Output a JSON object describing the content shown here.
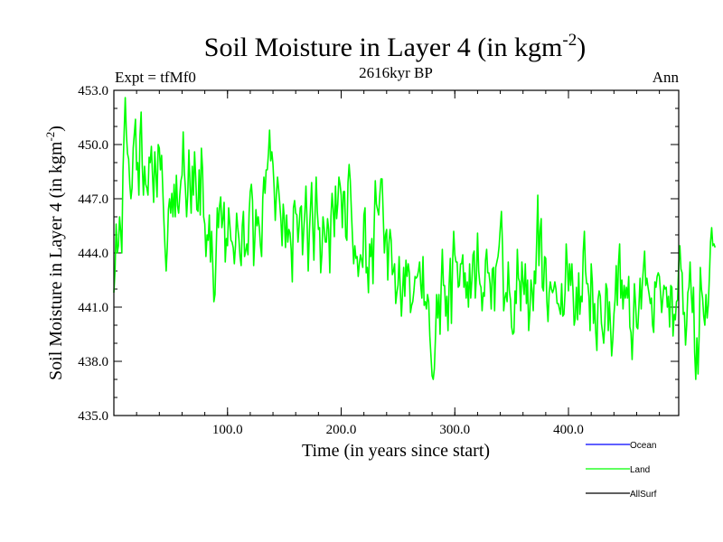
{
  "chart_data": {
    "type": "line",
    "title": "Soil Moisture in Layer 4 (in kgm",
    "title_superscript": "-2",
    "title_close": ")",
    "subtitle": "2616kyr BP",
    "left_label": "Expt = tfMf0",
    "right_label": "Ann",
    "xlabel": "Time (in years since start)",
    "ylabel": "Soil Moisture in Layer 4 (in kgm",
    "ylabel_superscript": "-2",
    "ylabel_close": ")",
    "xlim": [
      0,
      497
    ],
    "ylim": [
      435.0,
      453.0
    ],
    "x_ticks": [
      100,
      200,
      300,
      400
    ],
    "x_tick_labels": [
      "100.0",
      "200.0",
      "300.0",
      "400.0"
    ],
    "y_ticks": [
      435,
      438,
      441,
      444,
      447,
      450,
      453
    ],
    "y_tick_labels": [
      "435.0",
      "438.0",
      "441.0",
      "444.0",
      "447.0",
      "450.0",
      "453.0"
    ],
    "series": [
      {
        "name": "Land",
        "color": "#00ff00",
        "x_start": 0,
        "x_step": 1,
        "values": [
          441.8,
          443.0,
          445.6,
          444.0,
          444.4,
          446.0,
          445.2,
          444.0,
          448.5,
          450.6,
          452.6,
          450.6,
          449.5,
          449.2,
          447.8,
          447.0,
          447.6,
          449.8,
          450.6,
          451.4,
          448.6,
          449.0,
          447.2,
          450.5,
          451.8,
          448.8,
          447.2,
          448.8,
          447.8,
          447.6,
          447.2,
          449.3,
          449.0,
          449.9,
          448.3,
          446.8,
          449.6,
          448.4,
          447.1,
          450.0,
          449.8,
          448.6,
          449.4,
          447.6,
          445.8,
          444.3,
          443.0,
          444.3,
          446.4,
          447.0,
          446.2,
          447.3,
          446.0,
          447.8,
          446.0,
          448.3,
          446.6,
          446.2,
          447.2,
          448.0,
          448.3,
          450.7,
          448.5,
          447.5,
          446.0,
          447.2,
          449.7,
          447.7,
          446.2,
          448.8,
          447.2,
          449.6,
          448.2,
          446.4,
          446.3,
          448.6,
          446.1,
          449.8,
          448.7,
          446.0,
          445.6,
          443.8,
          445.0,
          444.7,
          446.1,
          443.5,
          445.2,
          443.4,
          441.3,
          441.7,
          444.1,
          446.5,
          445.4,
          446.6,
          447.1,
          445.4,
          445.9,
          446.8,
          443.5,
          444.8,
          444.4,
          446.5,
          445.6,
          444.7,
          444.6,
          444.3,
          443.4,
          444.4,
          446.2,
          445.4,
          444.8,
          443.8,
          443.3,
          445.5,
          446.3,
          443.8,
          444.1,
          444.5,
          443.9,
          446.2,
          447.4,
          447.8,
          446.9,
          443.3,
          444.7,
          446.4,
          445.5,
          446.0,
          445.4,
          444.4,
          443.8,
          447.0,
          448.2,
          447.3,
          448.6,
          448.6,
          449.5,
          450.8,
          449.1,
          449.6,
          448.9,
          447.6,
          445.8,
          447.2,
          448.2,
          447.5,
          446.7,
          445.8,
          444.4,
          446.7,
          445.9,
          444.3,
          446.1,
          444.6,
          445.3,
          445.1,
          444.2,
          442.4,
          446.5,
          446.9,
          446.2,
          446.1,
          444.6,
          445.5,
          446.5,
          446.6,
          443.9,
          445.2,
          446.2,
          447.7,
          445.7,
          443.0,
          445.1,
          446.5,
          447.9,
          445.5,
          443.6,
          446.1,
          448.2,
          446.3,
          445.3,
          445.4,
          442.9,
          443.9,
          446.0,
          445.4,
          444.6,
          444.6,
          445.9,
          445.3,
          442.9,
          446.0,
          447.3,
          446.4,
          444.9,
          447.7,
          445.9,
          446.7,
          448.2,
          447.8,
          447.2,
          445.4,
          447.4,
          447.4,
          444.9,
          444.7,
          447.9,
          448.9,
          448.0,
          446.3,
          444.8,
          443.4,
          444.4,
          443.7,
          443.8,
          442.7,
          443.4,
          443.9,
          443.6,
          443.2,
          446.1,
          446.5,
          442.9,
          443.2,
          441.8,
          444.5,
          443.8,
          444.8,
          442.3,
          445.4,
          448.0,
          446.7,
          446.4,
          446.1,
          447.2,
          448.1,
          448.1,
          446.1,
          444.0,
          445.0,
          445.3,
          442.5,
          444.5,
          445.3,
          444.7,
          442.8,
          443.0,
          443.4,
          441.2,
          441.8,
          442.2,
          443.8,
          442.0,
          440.5,
          441.8,
          443.2,
          441.6,
          443.6,
          442.7,
          443.4,
          442.9,
          440.7,
          441.1,
          441.3,
          441.9,
          442.7,
          442.6,
          442.7,
          443.0,
          443.5,
          442.2,
          441.5,
          443.8,
          441.1,
          441.3,
          440.9,
          441.7,
          441.3,
          439.4,
          438.3,
          437.2,
          437.0,
          437.6,
          439.4,
          441.7,
          440.4,
          441.7,
          439.5,
          442.2,
          444.2,
          442.2,
          442.2,
          440.5,
          441.6,
          439.7,
          442.3,
          443.7,
          440.1,
          443.4,
          445.2,
          443.9,
          443.5,
          443.5,
          442.1,
          442.2,
          443.4,
          443.4,
          443.9,
          442.1,
          442.9,
          441.5,
          442.4,
          441.0,
          443.4,
          441.5,
          442.5,
          443.9,
          444.1,
          441.5,
          442.7,
          445.1,
          443.0,
          442.3,
          442.1,
          440.8,
          441.8,
          441.6,
          443.6,
          444.2,
          442.9,
          442.9,
          442.3,
          440.9,
          443.1,
          443.2,
          440.8,
          443.2,
          443.5,
          443.8,
          444.4,
          445.4,
          446.3,
          444.3,
          440.8,
          441.5,
          441.8,
          441.3,
          443.5,
          441.9,
          441.4,
          439.9,
          439.5,
          439.6,
          441.9,
          441.2,
          444.2,
          442.6,
          442.4,
          440.8,
          443.5,
          442.4,
          441.7,
          443.4,
          441.2,
          442.5,
          439.7,
          440.7,
          442.5,
          441.9,
          440.8,
          443.0,
          442.3,
          444.6,
          447.2,
          443.3,
          445.2,
          445.9,
          442.1,
          441.9,
          443.8,
          443.7,
          441.3,
          440.2,
          441.8,
          442.4,
          442.0,
          441.8,
          442.0,
          442.4,
          442.0,
          441.2,
          441.2,
          440.9,
          440.6,
          442.3,
          440.5,
          440.6,
          441.8,
          444.5,
          443.3,
          441.9,
          443.4,
          442.2,
          443.4,
          441.9,
          440.0,
          440.4,
          442.1,
          440.3,
          442.9,
          440.6,
          441.6,
          441.3,
          444.1,
          445.2,
          443.0,
          442.3,
          442.3,
          441.6,
          439.7,
          443.4,
          442.4,
          440.1,
          441.2,
          439.6,
          438.6,
          441.4,
          441.9,
          441.6,
          440.1,
          439.6,
          439.0,
          440.1,
          442.3,
          442.0,
          439.7,
          441.3,
          439.9,
          438.3,
          439.2,
          440.6,
          441.4,
          443.3,
          441.1,
          443.4,
          444.5,
          441.5,
          442.5,
          440.9,
          442.2,
          441.5,
          442.1,
          441.5,
          442.7,
          439.9,
          439.6,
          438.1,
          439.9,
          442.3,
          441.2,
          439.9,
          439.8,
          441.1,
          442.6,
          440.9,
          442.3,
          443.2,
          444.1,
          442.2,
          442.6,
          442.1,
          441.7,
          441.2,
          441.5,
          440.0,
          439.6,
          442.4,
          442.1,
          442.7,
          442.9,
          442.7,
          441.8,
          440.7,
          441.5,
          442.2,
          442.0,
          442.1,
          441.0,
          441.6,
          439.9,
          442.2,
          442.1,
          439.4,
          440.6,
          440.3,
          441.3,
          441.4,
          443.4,
          444.4,
          443.1,
          442.9,
          440.6,
          440.7,
          438.9,
          440.0,
          441.8,
          442.1,
          443.5,
          441.8,
          440.7,
          442.1,
          438.5,
          437.0,
          439.3,
          437.3,
          439.5,
          443.2,
          442.0,
          441.5,
          440.5,
          440.0,
          441.7,
          440.4,
          441.1,
          442.7,
          444.6,
          445.4,
          444.4,
          444.5,
          444.3
        ]
      },
      {
        "name": "Ocean",
        "color": "#0000ff",
        "values": []
      },
      {
        "name": "AllSurf",
        "color": "#000000",
        "values": []
      }
    ],
    "legend": [
      {
        "label": "Ocean",
        "color": "#0000ff"
      },
      {
        "label": "Land",
        "color": "#00ff00"
      },
      {
        "label": "AllSurf",
        "color": "#000000"
      }
    ]
  }
}
